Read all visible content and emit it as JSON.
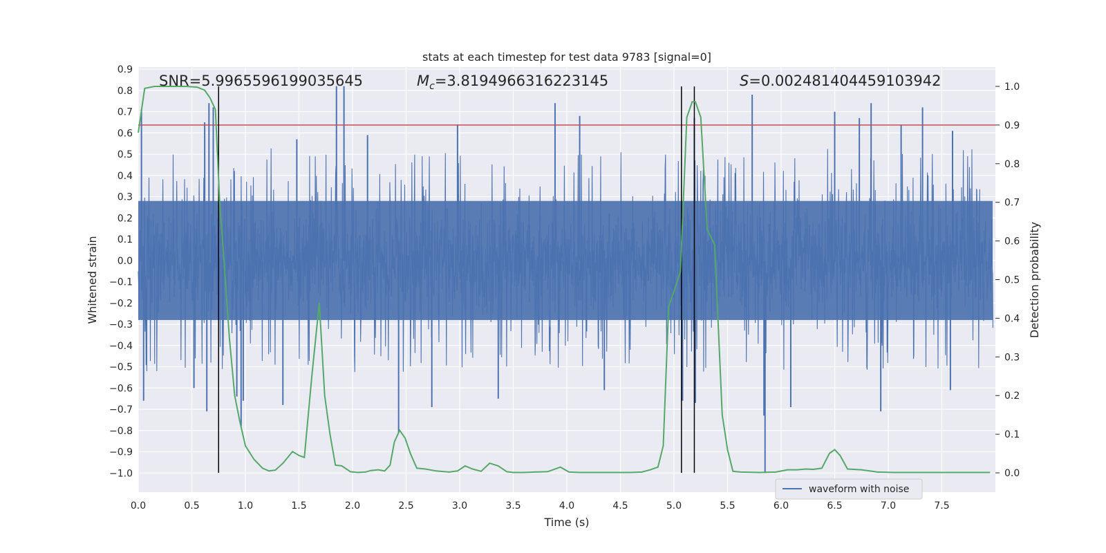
{
  "chart_data": {
    "type": "line",
    "title": "stats at each timestep for test data 9783 [signal=0]",
    "xlabel": "Time (s)",
    "ylabel": "Whitened strain",
    "y2label": "Detection probability",
    "xlim": [
      0,
      8
    ],
    "ylim": [
      -1.09,
      0.91
    ],
    "y2lim": [
      -0.05,
      1.05
    ],
    "xticks": [
      0.0,
      0.5,
      1.0,
      1.5,
      2.0,
      2.5,
      3.0,
      3.5,
      4.0,
      4.5,
      5.0,
      5.5,
      6.0,
      6.5,
      7.0,
      7.5
    ],
    "xtick_labels": [
      "0.0",
      "0.5",
      "1.0",
      "1.5",
      "2.0",
      "2.5",
      "3.0",
      "3.5",
      "4.0",
      "4.5",
      "5.0",
      "5.5",
      "6.0",
      "6.5",
      "7.0",
      "7.5"
    ],
    "yticks": [
      0.9,
      0.8,
      0.7,
      0.6,
      0.5,
      0.4,
      0.3,
      0.2,
      0.1,
      0.0,
      -0.1,
      -0.2,
      -0.3,
      -0.4,
      -0.5,
      -0.6,
      -0.7,
      -0.8,
      -0.9,
      -1.0
    ],
    "ytick_labels": [
      "0.9",
      "0.8",
      "0.7",
      "0.6",
      "0.5",
      "0.4",
      "0.3",
      "0.2",
      "0.1",
      "0.0",
      "−0.1",
      "−0.2",
      "−0.3",
      "−0.4",
      "−0.5",
      "−0.6",
      "−0.7",
      "−0.8",
      "−0.9",
      "−1.0"
    ],
    "y2ticks": [
      0.0,
      0.1,
      0.2,
      0.3,
      0.4,
      0.5,
      0.6,
      0.7,
      0.8,
      0.9,
      1.0
    ],
    "y2tick_labels": [
      "0.0",
      "0.1",
      "0.2",
      "0.3",
      "0.4",
      "0.5",
      "0.6",
      "0.7",
      "0.8",
      "0.9",
      "1.0"
    ],
    "annotations": {
      "snr": "SNR=5.9965596199035645",
      "mc_symbol": "M",
      "mc_sub": "c",
      "mc_value": "=3.8194966316223145",
      "s_symbol": "S",
      "s_value": "=0.002481404459103942"
    },
    "waveform": {
      "name": "waveform with noise",
      "color": "#4c72b0",
      "core_amplitude": 0.28,
      "burst_amplitude": 0.45,
      "spikes": [
        [
          0.03,
          0.71
        ],
        [
          0.05,
          -0.66
        ],
        [
          0.52,
          -0.6
        ],
        [
          0.62,
          0.65
        ],
        [
          0.64,
          -0.71
        ],
        [
          0.66,
          0.74
        ],
        [
          0.7,
          0.72
        ],
        [
          0.92,
          -0.64
        ],
        [
          0.96,
          -0.78
        ],
        [
          0.98,
          -0.66
        ],
        [
          1.35,
          -0.68
        ],
        [
          1.48,
          0.57
        ],
        [
          1.85,
          0.82
        ],
        [
          1.92,
          0.82
        ],
        [
          2.14,
          0.59
        ],
        [
          2.43,
          -0.81
        ],
        [
          2.98,
          0.64
        ],
        [
          2.74,
          -0.69
        ],
        [
          3.36,
          -0.65
        ],
        [
          3.89,
          0.74
        ],
        [
          4.12,
          0.68
        ],
        [
          4.35,
          -0.61
        ],
        [
          5.08,
          -0.66
        ],
        [
          5.19,
          0.67
        ],
        [
          5.2,
          -0.67
        ],
        [
          5.73,
          0.78
        ],
        [
          5.85,
          -1.0
        ],
        [
          5.84,
          -0.73
        ],
        [
          6.09,
          -0.69
        ],
        [
          6.84,
          0.74
        ],
        [
          6.93,
          -0.71
        ],
        [
          6.5,
          0.7
        ],
        [
          7.58,
          -0.61
        ],
        [
          7.6,
          0.61
        ],
        [
          7.12,
          0.64
        ],
        [
          6.73,
          0.67
        ],
        [
          7.32,
          0.72
        ]
      ]
    },
    "detection_probability": {
      "color": "#55a868",
      "x": [
        0.0,
        0.06,
        0.15,
        0.3,
        0.45,
        0.55,
        0.62,
        0.67,
        0.72,
        0.76,
        0.8,
        0.85,
        0.9,
        0.95,
        1.0,
        1.08,
        1.16,
        1.22,
        1.28,
        1.35,
        1.44,
        1.5,
        1.55,
        1.62,
        1.69,
        1.74,
        1.79,
        1.84,
        1.9,
        1.98,
        2.05,
        2.12,
        2.17,
        2.24,
        2.3,
        2.35,
        2.39,
        2.44,
        2.49,
        2.54,
        2.6,
        2.68,
        2.78,
        2.9,
        2.98,
        3.05,
        3.12,
        3.2,
        3.28,
        3.36,
        3.44,
        3.5,
        3.6,
        3.7,
        3.82,
        3.94,
        4.02,
        4.12,
        4.28,
        4.44,
        4.6,
        4.7,
        4.78,
        4.85,
        4.9,
        4.95,
        5.0,
        5.06,
        5.12,
        5.17,
        5.2,
        5.25,
        5.31,
        5.38,
        5.45,
        5.5,
        5.55,
        5.62,
        5.8,
        5.95,
        6.06,
        6.15,
        6.23,
        6.3,
        6.38,
        6.45,
        6.5,
        6.55,
        6.62,
        6.75,
        6.9,
        7.05,
        7.3,
        7.5,
        7.7,
        7.95
      ],
      "y": [
        0.88,
        0.995,
        1.0,
        1.0,
        1.0,
        0.998,
        0.99,
        0.97,
        0.94,
        0.7,
        0.55,
        0.35,
        0.2,
        0.13,
        0.07,
        0.035,
        0.012,
        0.005,
        0.007,
        0.025,
        0.055,
        0.045,
        0.04,
        0.25,
        0.44,
        0.2,
        0.1,
        0.02,
        0.018,
        0.003,
        0.001,
        0.002,
        0.006,
        0.008,
        0.005,
        0.02,
        0.08,
        0.11,
        0.09,
        0.05,
        0.012,
        0.01,
        0.005,
        0.002,
        0.005,
        0.018,
        0.01,
        0.004,
        0.025,
        0.018,
        0.003,
        0.001,
        0.001,
        0.002,
        0.003,
        0.015,
        0.002,
        0.001,
        0.001,
        0.001,
        0.001,
        0.002,
        0.008,
        0.015,
        0.07,
        0.43,
        0.47,
        0.52,
        0.92,
        0.96,
        0.96,
        0.92,
        0.63,
        0.59,
        0.15,
        0.06,
        0.004,
        0.002,
        0.001,
        0.002,
        0.008,
        0.008,
        0.01,
        0.009,
        0.012,
        0.05,
        0.06,
        0.045,
        0.01,
        0.008,
        0.002,
        0.001,
        0.001,
        0.001,
        0.001,
        0.001
      ]
    },
    "threshold": {
      "value": 0.9,
      "axis": "y2",
      "color": "#c44e52"
    },
    "vlines": [
      0.75,
      5.07,
      5.19
    ],
    "vline_range": [
      -1.0,
      1.0
    ],
    "vline_axis": "y2",
    "legend": {
      "label": "waveform with noise",
      "position": "lower right"
    }
  }
}
